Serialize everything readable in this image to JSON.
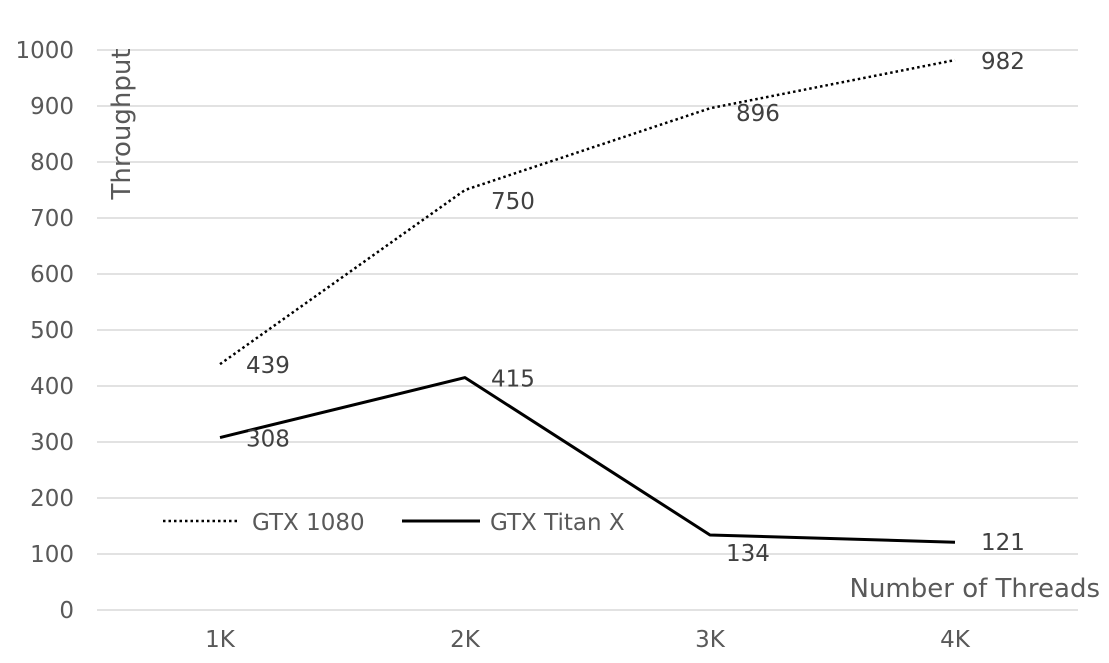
{
  "chart_data": {
    "type": "line",
    "categories": [
      "1K",
      "2K",
      "3K",
      "4K"
    ],
    "series": [
      {
        "name": "GTX 1080",
        "values": [
          439,
          750,
          896,
          982
        ],
        "color": "#000000",
        "line_style": "dotted"
      },
      {
        "name": "GTX Titan X",
        "values": [
          308,
          415,
          134,
          121
        ],
        "color": "#000000",
        "line_style": "solid"
      }
    ],
    "title": "",
    "xlabel": "Number of Threads",
    "ylabel": "Throughput",
    "ylim": [
      0,
      1000
    ],
    "yticks": [
      0,
      100,
      200,
      300,
      400,
      500,
      600,
      700,
      800,
      900,
      1000
    ],
    "grid": "horizontal",
    "legend_position": "bottom-left",
    "gridline_color": "#d9d9d9",
    "text_color": "#595959"
  }
}
